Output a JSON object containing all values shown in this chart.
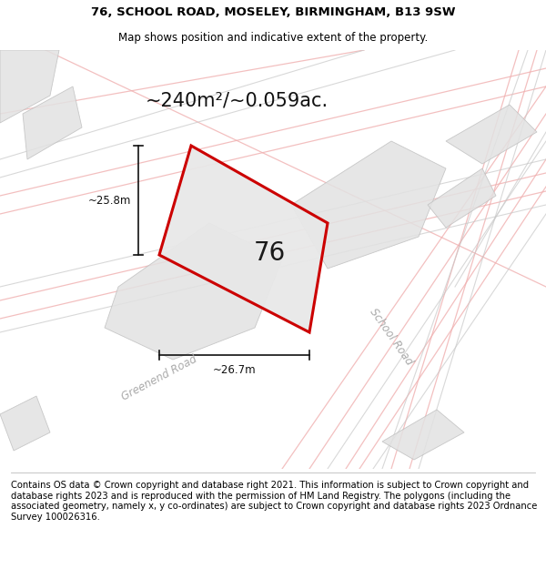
{
  "title_line1": "76, SCHOOL ROAD, MOSELEY, BIRMINGHAM, B13 9SW",
  "title_line2": "Map shows position and indicative extent of the property.",
  "area_label": "~240m²/~0.059ac.",
  "plot_number": "76",
  "dim_width": "~26.7m",
  "dim_height": "~25.8m",
  "road_label1": "Greenend Road",
  "road_label2": "School Road",
  "footer_text": "Contains OS data © Crown copyright and database right 2021. This information is subject to Crown copyright and database rights 2023 and is reproduced with the permission of HM Land Registry. The polygons (including the associated geometry, namely x, y co-ordinates) are subject to Crown copyright and database rights 2023 Ordnance Survey 100026316.",
  "bg_color": "#ffffff",
  "map_bg": "#f9f7f5",
  "plot_fill": "#e8e8e8",
  "plot_edge": "#cc0000",
  "road_line_color": "#f0b0b0",
  "gray_line_color": "#c8c8c8",
  "dim_line_color": "#111111",
  "title_fontsize": 9.5,
  "subtitle_fontsize": 8.5,
  "area_fontsize": 15,
  "plot_num_fontsize": 20,
  "road_label_fontsize": 8.5,
  "footer_fontsize": 7.2
}
